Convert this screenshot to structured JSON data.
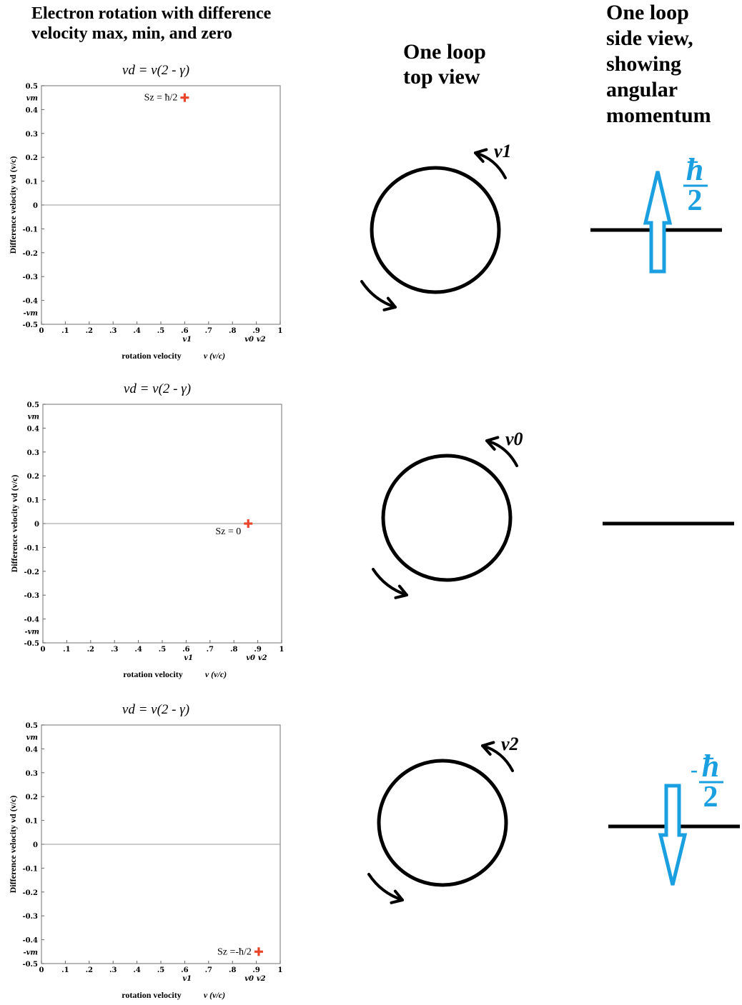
{
  "titles": {
    "main": [
      "Electron rotation with difference",
      "velocity max, min, and zero"
    ],
    "top_view": [
      "One loop",
      "top view"
    ],
    "side_view": [
      "One loop",
      "side view,",
      "showing",
      "angular",
      "momentum"
    ]
  },
  "plot_common": {
    "formula": "vd = v(2 - γ)",
    "ylabel": "Difference velocity vd (v/c)",
    "xlabel_main": "rotation velocity",
    "xlabel_unit": "v (v/c)",
    "y_ticks": [
      "0.5",
      "0.4",
      "0.3",
      "0.2",
      "0.1",
      "0",
      "-0.1",
      "-0.2",
      "-0.3",
      "-0.4",
      "-0.5"
    ],
    "x_ticks": [
      "0",
      ".1",
      ".2",
      ".3",
      ".4",
      ".5",
      ".6",
      ".7",
      ".8",
      ".9",
      "1"
    ],
    "y_special": {
      "vm": "vm",
      "neg_vm": "-vm"
    },
    "x_special": {
      "v1": "v1",
      "v0": "v0",
      "v2": "v2"
    },
    "accent_color": "#e8452a"
  },
  "chart_data": [
    {
      "type": "scatter",
      "title": "vd = v(2 - γ)",
      "xlabel": "rotation velocity v (v/c)",
      "ylabel": "Difference velocity vd (v/c)",
      "xlim": [
        0,
        1
      ],
      "ylim": [
        -0.5,
        0.5
      ],
      "points": [
        {
          "x": 0.6,
          "y": 0.45,
          "label": "Sz = ħ/2"
        }
      ]
    },
    {
      "type": "scatter",
      "title": "vd = v(2 - γ)",
      "xlabel": "rotation velocity v (v/c)",
      "ylabel": "Difference velocity vd (v/c)",
      "xlim": [
        0,
        1
      ],
      "ylim": [
        -0.5,
        0.5
      ],
      "points": [
        {
          "x": 0.86,
          "y": 0.0,
          "label": "Sz = 0"
        }
      ]
    },
    {
      "type": "scatter",
      "title": "vd = v(2 - γ)",
      "xlabel": "rotation velocity v (v/c)",
      "ylabel": "Difference velocity vd (v/c)",
      "xlim": [
        0,
        1
      ],
      "ylim": [
        -0.5,
        0.5
      ],
      "points": [
        {
          "x": 0.91,
          "y": -0.45,
          "label": "Sz =-ħ/2"
        }
      ]
    }
  ],
  "loops": [
    {
      "velocity_label": "v1",
      "spin": "up",
      "spin_label": "ħ",
      "spin_denominator": "2",
      "spin_sign": ""
    },
    {
      "velocity_label": "v0",
      "spin": "none"
    },
    {
      "velocity_label": "v2",
      "spin": "down",
      "spin_label": "ħ",
      "spin_denominator": "2",
      "spin_sign": "-"
    }
  ],
  "colors": {
    "spin_arrow": "#1a9fe0",
    "stroke": "#000000"
  }
}
